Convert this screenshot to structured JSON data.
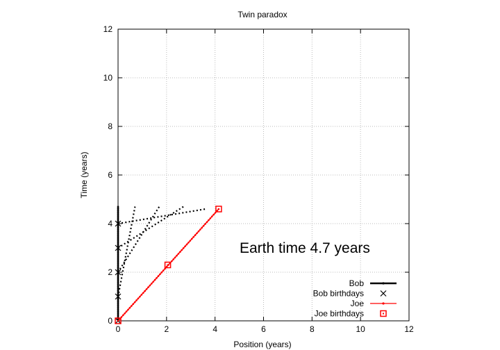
{
  "chart_data": {
    "type": "scatter",
    "title": "Twin paradox",
    "xlabel": "Position (years)",
    "ylabel": "Time (years)",
    "xlim": [
      0,
      12
    ],
    "ylim": [
      0,
      12
    ],
    "xticks": [
      "0",
      "2",
      "4",
      "6",
      "8",
      "10",
      "12"
    ],
    "yticks": [
      "0",
      "2",
      "4",
      "6",
      "8",
      "10",
      "12"
    ],
    "grid": true,
    "annotation": "Earth time  4.7 years",
    "legend_position": "bottom-right",
    "series": [
      {
        "name": "Bob",
        "style": "line with points",
        "color": "#000000",
        "x": [
          0,
          0
        ],
        "y": [
          0,
          4.7
        ]
      },
      {
        "name": "Bob birthdays",
        "style": "cross markers",
        "color": "#000000",
        "x": [
          0,
          0,
          0,
          0,
          0
        ],
        "y": [
          0,
          1,
          2,
          3,
          4
        ]
      },
      {
        "name": "Joe",
        "style": "line with points",
        "color": "#ff0000",
        "x": [
          0,
          4.15
        ],
        "y": [
          0,
          4.6
        ]
      },
      {
        "name": "Joe birthdays",
        "style": "square markers",
        "color": "#ff0000",
        "x": [
          0,
          2.05,
          4.15
        ],
        "y": [
          0,
          2.3,
          4.6
        ]
      }
    ],
    "signal_lines": [
      {
        "x": [
          0,
          0.7
        ],
        "y": [
          1,
          4.7
        ]
      },
      {
        "x": [
          0,
          1.7
        ],
        "y": [
          2,
          4.7
        ]
      },
      {
        "x": [
          0,
          2.7
        ],
        "y": [
          3,
          4.7
        ]
      },
      {
        "x": [
          0,
          3.6
        ],
        "y": [
          4,
          4.6
        ]
      }
    ]
  }
}
